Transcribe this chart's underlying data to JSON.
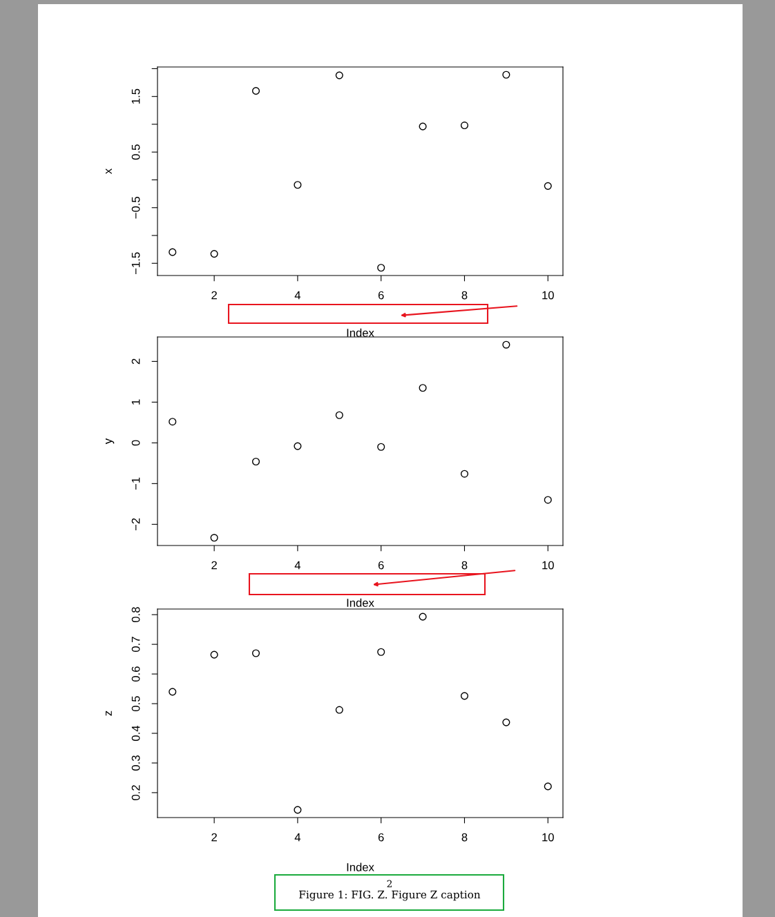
{
  "chart_data": [
    {
      "type": "scatter",
      "xlabel": "Index",
      "ylabel": "x",
      "marker": "circle",
      "color": "#000000",
      "grid": false,
      "x": [
        1,
        2,
        3,
        4,
        5,
        6,
        7,
        8,
        9,
        10
      ],
      "values": [
        -1.3,
        -1.33,
        1.6,
        -0.09,
        1.88,
        -1.58,
        0.96,
        0.98,
        1.89,
        -0.11
      ],
      "xlim": [
        0.64,
        10.36
      ],
      "xticks": [
        2,
        4,
        6,
        8,
        10
      ],
      "ylim": [
        -1.72,
        2.03
      ],
      "yticks": [
        -1.5,
        {
          "value": -1,
          "label": null
        },
        -0.5,
        {
          "value": 0,
          "label": null
        },
        0.5,
        {
          "value": 1,
          "label": null
        },
        1.5,
        {
          "value": 2,
          "label": null
        }
      ]
    },
    {
      "type": "scatter",
      "xlabel": "Index",
      "ylabel": "y",
      "marker": "circle",
      "color": "#000000",
      "grid": false,
      "x": [
        1,
        2,
        3,
        4,
        5,
        6,
        7,
        8,
        9,
        10
      ],
      "values": [
        0.52,
        -2.33,
        -0.46,
        -0.08,
        0.68,
        -0.1,
        1.35,
        -0.76,
        2.41,
        -1.4
      ],
      "xlim": [
        0.64,
        10.36
      ],
      "xticks": [
        2,
        4,
        6,
        8,
        10
      ],
      "ylim": [
        -2.52,
        2.6
      ],
      "yticks": [
        {
          "value": -2,
          "label": "−2"
        },
        {
          "value": -1,
          "label": "−1"
        },
        0,
        1,
        2
      ]
    },
    {
      "type": "scatter",
      "xlabel": "Index",
      "ylabel": "z",
      "marker": "circle",
      "color": "#000000",
      "grid": false,
      "x": [
        1,
        2,
        3,
        4,
        5,
        6,
        7,
        8,
        9,
        10
      ],
      "values": [
        0.54,
        0.665,
        0.67,
        0.142,
        0.479,
        0.674,
        0.793,
        0.526,
        0.437,
        0.221
      ],
      "xlim": [
        0.64,
        10.36
      ],
      "xticks": [
        2,
        4,
        6,
        8,
        10
      ],
      "ylim": [
        0.116,
        0.819
      ],
      "yticks": [
        0.2,
        0.3,
        0.4,
        0.5,
        0.6,
        0.7,
        0.8
      ],
      "annotations": [
        "2",
        "Figure 1: FIG. Z. Figure Z caption"
      ]
    }
  ]
}
